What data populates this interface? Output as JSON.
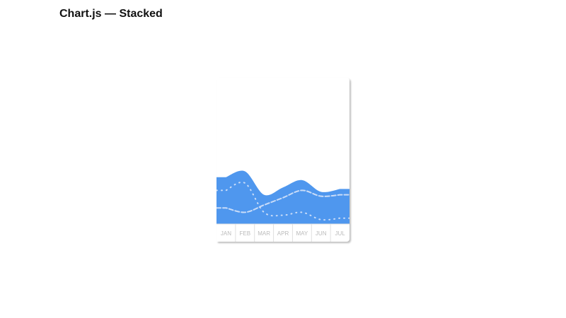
{
  "title": "Chart.js — Stacked",
  "chart_data": {
    "type": "area",
    "stacked": true,
    "categories": [
      "JAN",
      "FEB",
      "MAR",
      "APR",
      "MAY",
      "JUN",
      "JUL"
    ],
    "series": [
      {
        "style": "dashed",
        "values": [
          11,
          8,
          13,
          18,
          23,
          19,
          20
        ]
      },
      {
        "style": "dotted",
        "values": [
          23,
          28,
          8,
          6,
          8,
          3,
          4
        ]
      },
      {
        "style": "filled-top",
        "values": [
          32,
          36,
          20,
          25,
          30,
          22,
          24
        ]
      }
    ],
    "ylim": [
      0,
      100
    ],
    "grid": false,
    "legend": "none",
    "colors": {
      "fill": "#4f97ee",
      "line": "#c9dcf8",
      "label": "#bbbbbb",
      "divider": "#e0e0e0"
    }
  }
}
